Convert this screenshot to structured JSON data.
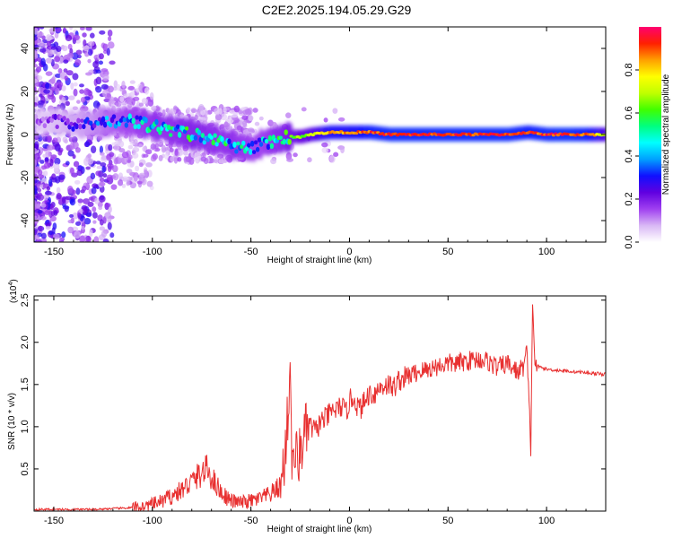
{
  "figure": {
    "title": "C2E2.2025.194.05.29.G29"
  },
  "chart_data": [
    {
      "type": "heatmap",
      "xlabel": "Height of straight line (km)",
      "ylabel": "Frequency (Hz)",
      "xlim": [
        -160,
        130
      ],
      "ylim": [
        -50,
        50
      ],
      "xticks": [
        -150,
        -100,
        -50,
        0,
        50,
        100
      ],
      "yticks": [
        -40,
        -20,
        0,
        20,
        40
      ],
      "grid": false,
      "colorbar": {
        "label": "Normalized spectral amplitude",
        "range": [
          0,
          1
        ],
        "ticks": [
          0.0,
          0.2,
          0.4,
          0.6,
          0.8
        ],
        "colormap": [
          "#ffffff",
          "#d9b8f5",
          "#a040f0",
          "#6000e0",
          "#1010ff",
          "#00a0ff",
          "#00ffff",
          "#00ff80",
          "#40ff00",
          "#c0ff00",
          "#ffff00",
          "#ffa000",
          "#ff2000",
          "#ff0070"
        ]
      },
      "ridge": {
        "x": [
          -160,
          -150,
          -140,
          -130,
          -120,
          -110,
          -100,
          -90,
          -80,
          -70,
          -60,
          -50,
          -45,
          -40,
          -35,
          -30,
          -25,
          -20,
          -10,
          0,
          10,
          20,
          40,
          60,
          80,
          90,
          100,
          110,
          120,
          130
        ],
        "frequency": [
          6,
          6,
          5,
          5,
          6,
          6,
          4,
          2,
          0,
          -2,
          -5,
          -7,
          -4,
          -3,
          -2,
          -1,
          -1,
          0,
          1,
          1,
          1,
          0,
          0,
          0,
          0,
          1,
          0,
          0,
          0,
          0
        ],
        "amplitude": [
          0.15,
          0.2,
          0.25,
          0.3,
          0.4,
          0.45,
          0.5,
          0.5,
          0.55,
          0.5,
          0.5,
          0.45,
          0.45,
          0.5,
          0.55,
          0.6,
          0.65,
          0.7,
          0.85,
          0.85,
          0.9,
          0.92,
          0.92,
          0.92,
          0.92,
          0.9,
          0.92,
          0.93,
          0.9,
          0.7
        ]
      }
    },
    {
      "type": "line",
      "xlabel": "Height of straight line (km)",
      "ylabel": "SNR (10 * v/v)",
      "y_multiplier": "(x10",
      "y_multiplier_exp": "4",
      "y_multiplier_close": ")",
      "xlim": [
        -160,
        130
      ],
      "ylim": [
        0,
        2.55
      ],
      "xticks": [
        -150,
        -100,
        -50,
        0,
        50,
        100
      ],
      "yticks": [
        "0.5",
        "1.0",
        "1.5",
        "2.0",
        "2.5"
      ],
      "grid": false,
      "color": "#e83030",
      "series": [
        {
          "x": [
            -160,
            -150,
            -140,
            -130,
            -120,
            -110,
            -105,
            -100,
            -95,
            -90,
            -85,
            -80,
            -75,
            -72,
            -70,
            -65,
            -60,
            -55,
            -50,
            -45,
            -40,
            -35,
            -33,
            -31,
            -30,
            -29,
            -28,
            -26,
            -24,
            -22,
            -20,
            -17,
            -15,
            -12,
            -10,
            -8,
            -6,
            -4,
            -2,
            0,
            2,
            5,
            8,
            10,
            12,
            15,
            18,
            20,
            22,
            25,
            30,
            35,
            40,
            45,
            50,
            55,
            60,
            65,
            70,
            75,
            80,
            85,
            88,
            90,
            92,
            93,
            94,
            95,
            100,
            105,
            110,
            115,
            120,
            125,
            130
          ],
          "y": [
            0.02,
            0.02,
            0.02,
            0.02,
            0.03,
            0.04,
            0.05,
            0.08,
            0.12,
            0.18,
            0.25,
            0.35,
            0.45,
            0.5,
            0.4,
            0.22,
            0.12,
            0.1,
            0.12,
            0.15,
            0.2,
            0.3,
            0.6,
            1.2,
            1.78,
            0.4,
            0.7,
            0.6,
            0.8,
            0.95,
            1.0,
            0.95,
            1.05,
            1.1,
            1.15,
            1.2,
            1.2,
            1.25,
            1.15,
            1.3,
            1.35,
            1.2,
            1.3,
            1.4,
            1.38,
            1.45,
            1.5,
            1.5,
            1.45,
            1.55,
            1.6,
            1.65,
            1.68,
            1.72,
            1.75,
            1.75,
            1.78,
            1.8,
            1.78,
            1.7,
            1.75,
            1.65,
            1.7,
            1.9,
            0.75,
            2.55,
            1.75,
            1.72,
            1.68,
            1.67,
            1.66,
            1.65,
            1.64,
            1.63,
            1.62
          ]
        }
      ]
    }
  ]
}
